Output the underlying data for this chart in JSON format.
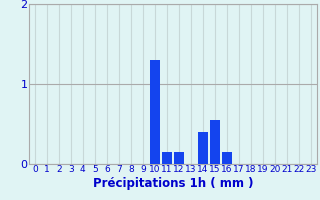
{
  "hours": [
    0,
    1,
    2,
    3,
    4,
    5,
    6,
    7,
    8,
    9,
    10,
    11,
    12,
    13,
    14,
    15,
    16,
    17,
    18,
    19,
    20,
    21,
    22,
    23
  ],
  "values": [
    0,
    0,
    0,
    0,
    0,
    0,
    0,
    0,
    0,
    0,
    1.3,
    0.15,
    0.15,
    0.0,
    0.4,
    0.55,
    0.15,
    0.0,
    0,
    0,
    0,
    0,
    0,
    0
  ],
  "bar_color": "#1444ee",
  "background_color": "#e0f4f4",
  "grid_color_h": "#aaaaaa",
  "grid_color_v": "#c8d8d8",
  "axis_color": "#0000cc",
  "tick_color": "#0000cc",
  "xlabel": "Précipitations 1h ( mm )",
  "ylim": [
    0,
    2
  ],
  "yticks": [
    0,
    1,
    2
  ],
  "xlim": [
    -0.5,
    23.5
  ],
  "xlabel_fontsize": 8.5,
  "tick_fontsize": 6.5,
  "ytick_fontsize": 8.0
}
